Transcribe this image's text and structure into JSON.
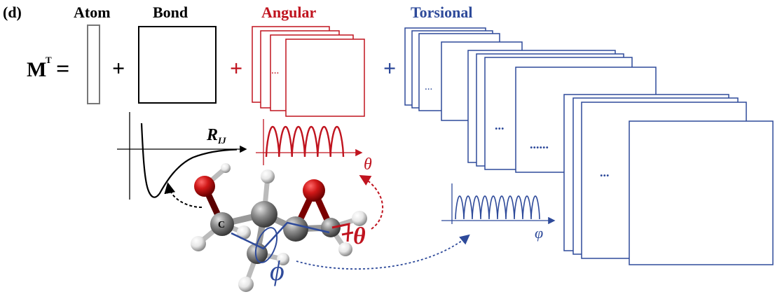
{
  "panel": {
    "label": "(d)"
  },
  "headers": {
    "atom": "Atom",
    "bond": "Bond",
    "angular": "Angular",
    "torsional": "Torsional"
  },
  "equation": {
    "lhs_base": "M",
    "lhs_sup": "T",
    "equals": "=",
    "plus": "+"
  },
  "ellipsis": "...",
  "ellipsis_long": "......",
  "plots": {
    "bond_axis_label": "R",
    "bond_axis_sub": "IJ",
    "angle_axis_label": "θ",
    "torsion_axis_label": "φ"
  },
  "molecule": {
    "carbon_label": "C",
    "angle_label": "θ",
    "torsion_label": "ϕ"
  },
  "colors": {
    "black": "#000000",
    "red": "#c0141f",
    "blue": "#2e4a9a",
    "gray_box": "#777777",
    "oxygen": "#d01818",
    "carbon": "#8c8c8c",
    "hydrogen": "#e6e6e6"
  }
}
